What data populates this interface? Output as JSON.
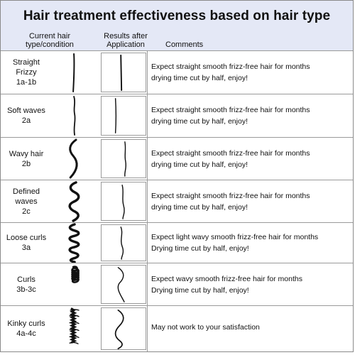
{
  "title": "Hair treatment effectiveness based on hair type",
  "headers": {
    "current_line1": "Current hair",
    "current_line2": "type/condition",
    "results_line1": "Results after",
    "results_line2": "Application",
    "comments": "Comments"
  },
  "rows": [
    {
      "label": [
        "Straight",
        "Frizzy",
        "1a-1b"
      ],
      "comment": [
        "Expect straight smooth frizz-free hair for months",
        "drying time cut by half, enjoy!"
      ]
    },
    {
      "label": [
        "Soft waves",
        "2a"
      ],
      "comment": [
        "Expect straight smooth frizz-free hair for months",
        "drying time cut by half, enjoy!"
      ]
    },
    {
      "label": [
        "Wavy hair",
        "2b"
      ],
      "comment": [
        "Expect straight smooth frizz-free hair for months",
        "drying time cut by half, enjoy!"
      ]
    },
    {
      "label": [
        "Defined",
        "waves",
        "2c"
      ],
      "comment": [
        "Expect straight smooth frizz-free hair for months",
        "drying time cut by half, enjoy!"
      ]
    },
    {
      "label": [
        "Loose curls",
        "3a"
      ],
      "comment": [
        "Expect light wavy smooth frizz-free hair for months",
        "Drying time cut by half, enjoy!"
      ]
    },
    {
      "label": [
        "Curls",
        "3b-3c"
      ],
      "comment": [
        "Expect wavy smooth frizz-free hair for months",
        "Drying time cut by half, enjoy!"
      ]
    },
    {
      "label": [
        "Kinky curls",
        "4a-4c"
      ],
      "comment": [
        "May not work to your satisfaction"
      ]
    }
  ]
}
